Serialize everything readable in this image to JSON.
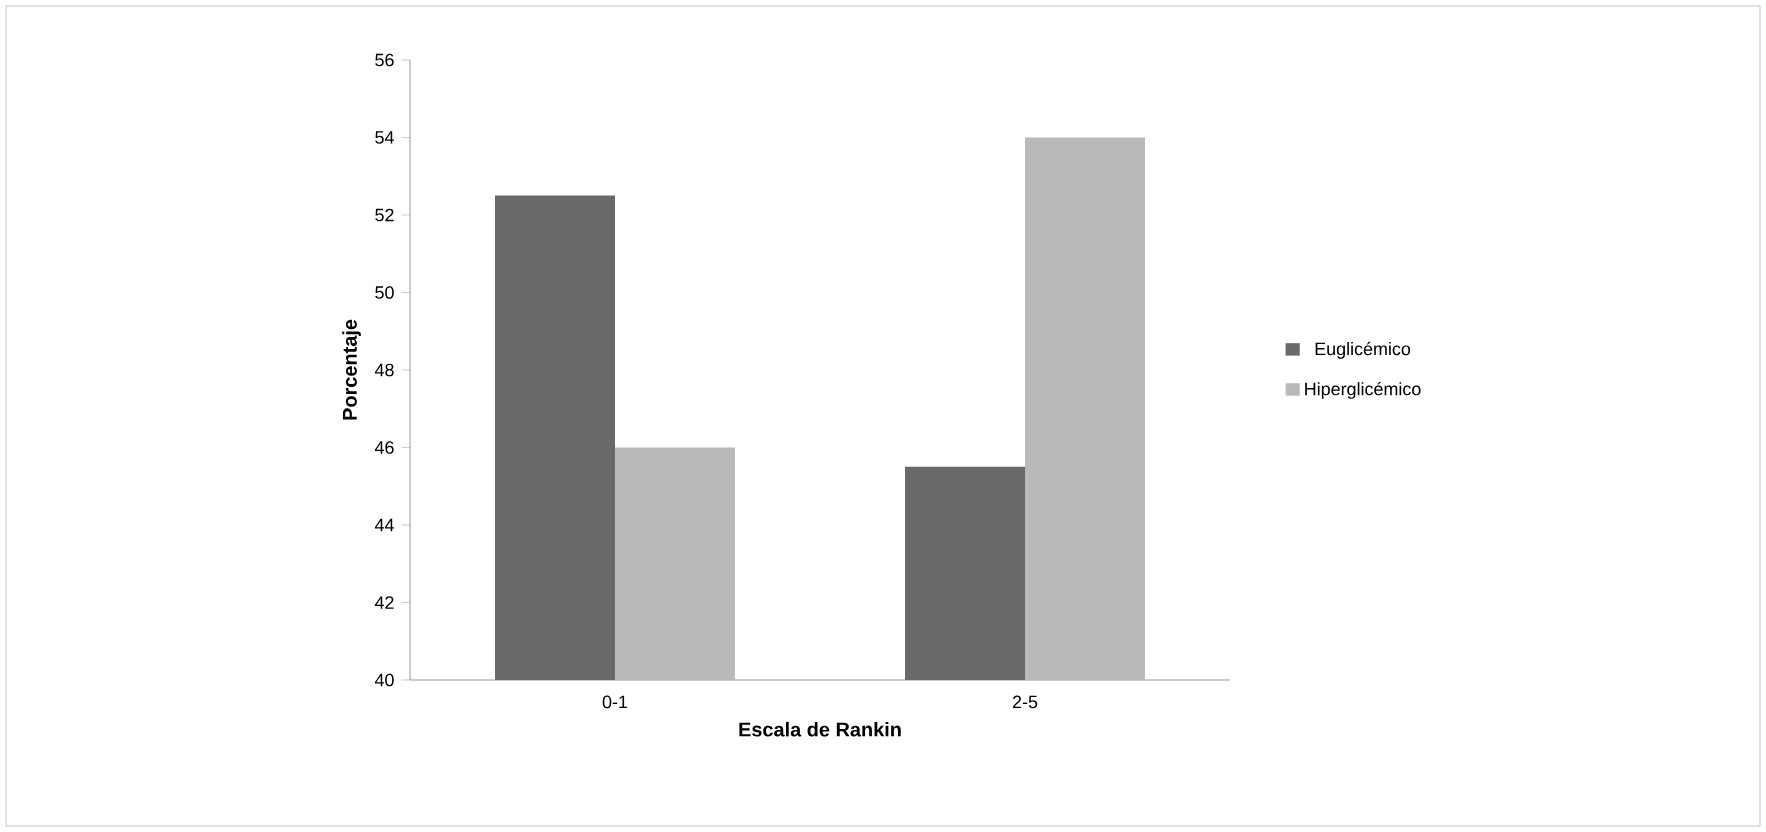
{
  "chart_data": {
    "type": "bar",
    "xlabel": "Escala de Rankin",
    "ylabel": "Porcentaje",
    "categories": [
      "0-1",
      "2-5"
    ],
    "series": [
      {
        "name": "Euglicémico",
        "color": "#696969",
        "values": [
          52.5,
          45.5
        ]
      },
      {
        "name": "Hiperglicémico",
        "color": "#b9b9b9",
        "values": [
          46,
          54
        ]
      }
    ],
    "ylim": [
      40,
      56
    ],
    "yticks": [
      40,
      42,
      44,
      46,
      48,
      50,
      52,
      54,
      56
    ],
    "legend": "right"
  }
}
